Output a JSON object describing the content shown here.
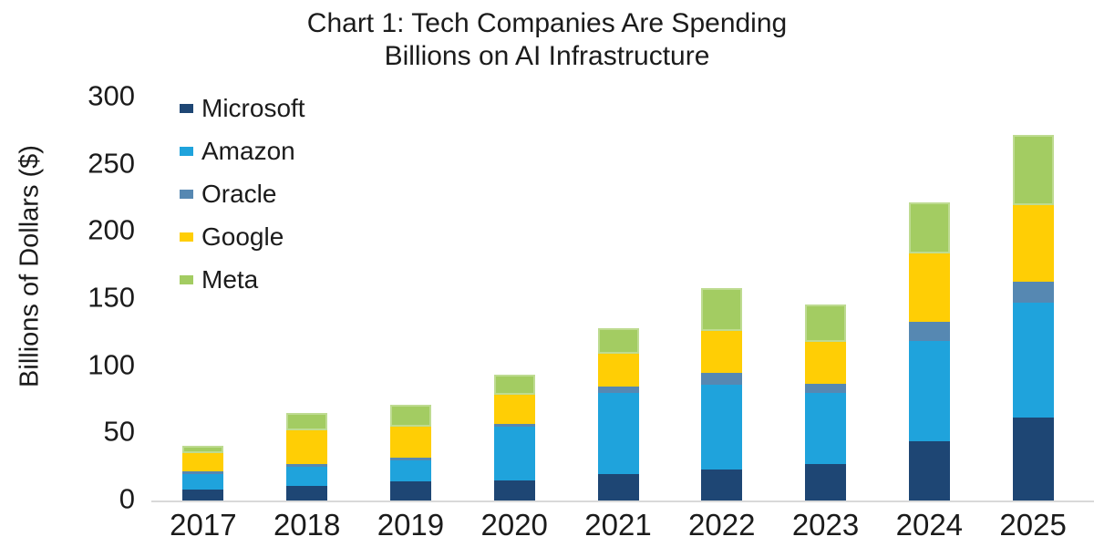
{
  "chart_data": {
    "type": "bar",
    "stacked": true,
    "title": "Chart 1: Tech Companies Are Spending Billions on AI Infrastructure",
    "title_lines": [
      "Chart 1: Tech Companies Are Spending",
      "Billions on AI Infrastructure"
    ],
    "ylabel": "Billions of Dollars ($)",
    "xlabel": "",
    "categories": [
      "2017",
      "2018",
      "2019",
      "2020",
      "2021",
      "2022",
      "2023",
      "2024",
      "2025"
    ],
    "series": [
      {
        "name": "Microsoft",
        "color": "#1E4674",
        "values": [
          8,
          11,
          14,
          15,
          20,
          23,
          27,
          44,
          62
        ]
      },
      {
        "name": "Amazon",
        "color": "#1FA3DC",
        "values": [
          12,
          14,
          16,
          40,
          60,
          63,
          53,
          75,
          85
        ]
      },
      {
        "name": "Oracle",
        "color": "#5688B2",
        "values": [
          2,
          2,
          2,
          2,
          5,
          9,
          7,
          14,
          16
        ]
      },
      {
        "name": "Google",
        "color": "#FFCE05",
        "values": [
          13,
          25,
          23,
          22,
          24,
          31,
          31,
          51,
          57
        ]
      },
      {
        "name": "Meta",
        "color": "#A3CC62",
        "values": [
          6,
          13,
          16,
          15,
          19,
          32,
          28,
          38,
          52
        ]
      }
    ],
    "totals": [
      41,
      65,
      71,
      94,
      128,
      158,
      146,
      222,
      272
    ],
    "ylim": [
      0,
      300
    ],
    "yticks": [
      0,
      50,
      100,
      150,
      200,
      250,
      300
    ],
    "grid": false,
    "axis_line_color": "#d9d9d9",
    "legend_position": "top-left-inside",
    "legend_entries": [
      "Microsoft",
      "Amazon",
      "Oracle",
      "Google",
      "Meta"
    ]
  }
}
